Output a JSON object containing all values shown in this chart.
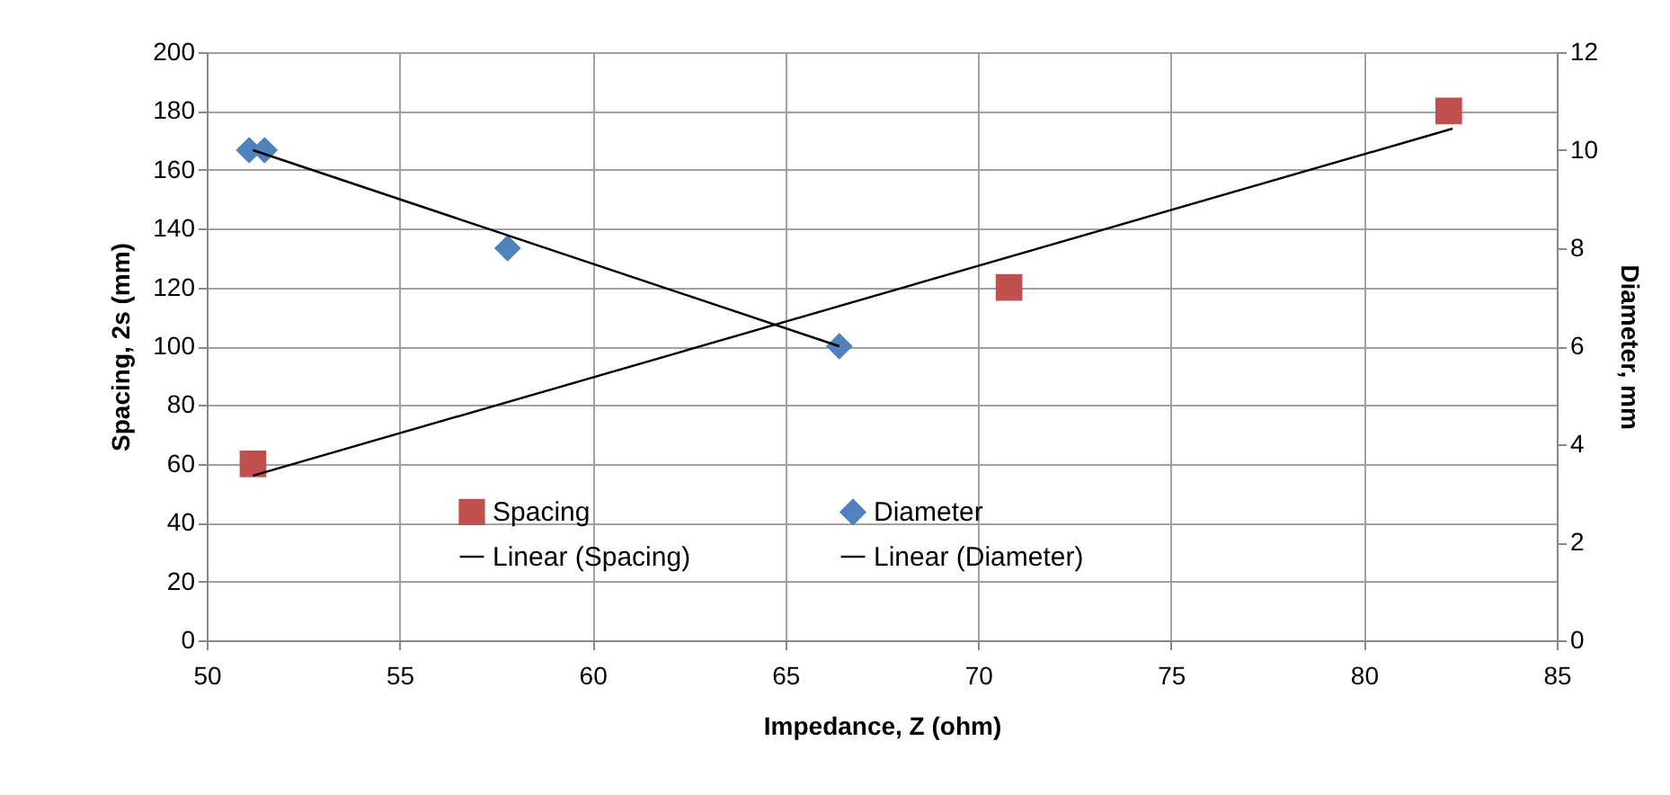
{
  "chart_data": {
    "type": "scatter",
    "xlabel": "Impedance, Z (ohm)",
    "ylabel": "Spacing, 2s (mm)",
    "y2label": "Diameter, mm",
    "xlim": [
      50,
      85
    ],
    "xticks": [
      50,
      55,
      60,
      65,
      70,
      75,
      80,
      85
    ],
    "ylim": [
      0,
      200
    ],
    "yticks": [
      0,
      20,
      40,
      60,
      80,
      100,
      120,
      140,
      160,
      180,
      200
    ],
    "y2lim": [
      0,
      12
    ],
    "y2ticks": [
      0,
      2,
      4,
      6,
      8,
      10,
      12
    ],
    "grid": true,
    "legend": "bottom",
    "series": [
      {
        "name": "Spacing",
        "marker": "square",
        "color": "#c0504d",
        "x": [
          51.2,
          70.8,
          82.2
        ],
        "values": [
          60,
          120,
          180
        ]
      },
      {
        "name": "Diameter",
        "marker": "diamond",
        "color": "#4f81bd",
        "axis": "y2",
        "x": [
          51.1,
          51.5,
          57.8,
          66.4
        ],
        "values": [
          10,
          10,
          8,
          6
        ]
      },
      {
        "name": "Linear (Spacing)",
        "type": "line",
        "color": "#000000",
        "x": [
          51.2,
          82.3
        ],
        "values": [
          56,
          174
        ]
      },
      {
        "name": "Linear (Diameter)",
        "type": "line",
        "color": "#000000",
        "axis": "y2",
        "x": [
          51.2,
          66.4
        ],
        "values": [
          10,
          6
        ]
      }
    ]
  }
}
